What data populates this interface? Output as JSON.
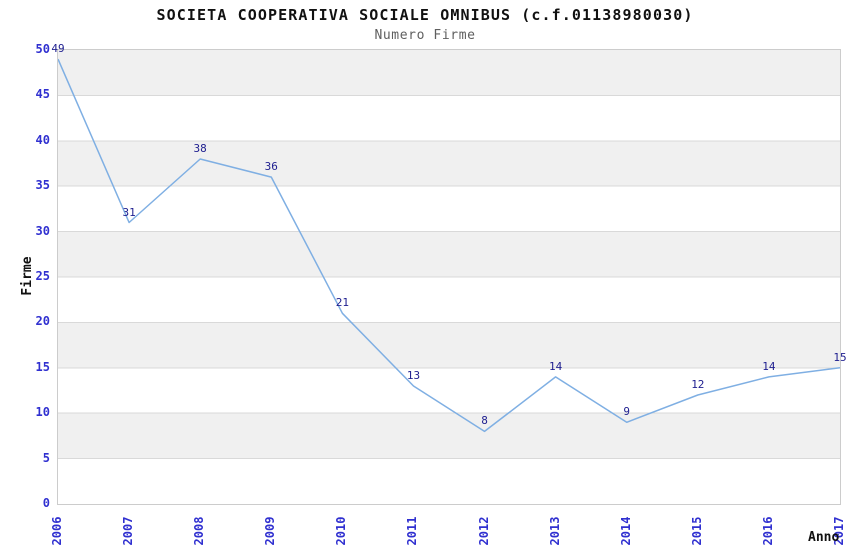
{
  "chart_data": {
    "type": "line",
    "title": "SOCIETA COOPERATIVA SOCIALE OMNIBUS (c.f.01138980030)",
    "subtitle": "Numero Firme",
    "xlabel": "Anno",
    "ylabel": "Firme",
    "categories": [
      "2006",
      "2007",
      "2008",
      "2009",
      "2010",
      "2011",
      "2012",
      "2013",
      "2014",
      "2015",
      "2016",
      "2017"
    ],
    "values": [
      49,
      31,
      38,
      36,
      21,
      13,
      8,
      14,
      9,
      12,
      14,
      15
    ],
    "yticks": [
      0,
      5,
      10,
      15,
      20,
      25,
      30,
      35,
      40,
      45,
      50
    ],
    "ylim": [
      0,
      50
    ],
    "grid": "horizontal gridlines with alternating shaded bands",
    "legend": "none",
    "point_labels_visible": true,
    "colors": {
      "line": "#7fafe3",
      "tick_label": "#3030d0",
      "point_label": "#202090",
      "title": "#111111",
      "subtitle": "#5f5f5f",
      "axis_title": "#111111",
      "band": "#f0f0f0",
      "gridline": "#d9d9d9",
      "plot_border": "#cccccc"
    }
  }
}
